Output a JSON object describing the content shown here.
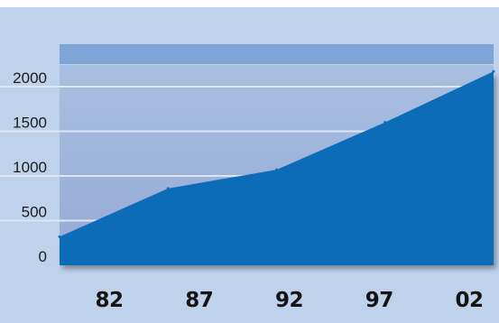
{
  "chart_data": {
    "type": "area",
    "title": "",
    "xlabel": "",
    "ylabel": "",
    "x_ticks": [
      "82",
      "87",
      "92",
      "97",
      "02"
    ],
    "y_ticks": [
      "2000",
      "1500",
      "1000",
      "500",
      "0"
    ],
    "x": [
      1982,
      1987,
      1992,
      1997,
      2002
    ],
    "values": [
      320,
      860,
      1070,
      1600,
      2170
    ],
    "xlim": [
      1982,
      2002
    ],
    "ylim": [
      0,
      2000
    ],
    "grid": true,
    "colors": {
      "page_background": "#ffffff",
      "frame_background": "#bed2ec",
      "plot_background_top": "#a9bfe1",
      "plot_background_bottom": "#95a9d5",
      "top_band": "#7fa5d6",
      "gridline": "#dce6f5",
      "area_fill": "#0a6cb7"
    }
  }
}
